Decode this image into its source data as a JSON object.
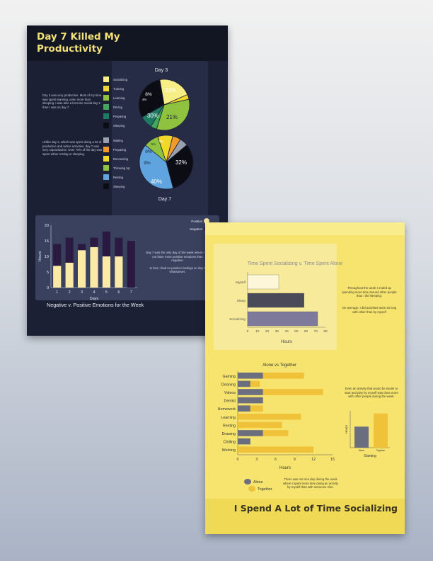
{
  "productivity_poster": {
    "title": "Day 7 Killed My Productivity",
    "day3_text": "Day 3 was very productive. Most of my time was spent learning, even more than sleeping. I was also a lot more social day 3 than I was on day 7.",
    "day7_text": "Unlike day 3, which was spent doing a lot of productive and active activities, day 7 was very unproductive. Over 70% of the day was spent either resting or sleeping.",
    "emotions_note_1": "Day 7 was the only day of the week where I did not have more positive emotions than negative.",
    "emotions_note_2": "In fact, I had no positive feelings on day 7 whatsoever.",
    "legend_positive": "Positive",
    "legend_negative": "Negative"
  },
  "socializing_poster": {
    "title": "I Spend A Lot of Time Socializing",
    "note_1": "Throughout the week I ended up spending more time around other people than I did sleeping.",
    "note_2": "On average, I did activities twice as long with other than by myself",
    "note_3": "Even an activity that would be easier to start and play by myself was done more with other people during the week.",
    "note_4": "There was not one day during the week where I spent more time doing an activity by myself than with someone else."
  },
  "chart_data": [
    {
      "type": "pie",
      "title": "Day 3",
      "legend": [
        "Socializing",
        "Tutoring",
        "Learning",
        "Driving",
        "Preparing",
        "Sleeping"
      ],
      "slices": [
        {
          "label": "Socializing",
          "value": 21,
          "color": "#f7ee85"
        },
        {
          "label": "Tutoring",
          "value": 3,
          "color": "#f2d82a"
        },
        {
          "label": "Learning",
          "value": 33,
          "color": "#8fc23f"
        },
        {
          "label": "Driving",
          "value": 4,
          "color": "#3fa85a"
        },
        {
          "label": "Preparing",
          "value": 8,
          "color": "#1f7a63"
        },
        {
          "label": "Sleeping",
          "value": 30,
          "color": "#0c0d14"
        }
      ],
      "data_labels": [
        "33%",
        "21%",
        "30%",
        "8%",
        "4%"
      ]
    },
    {
      "type": "pie",
      "title": "Day 7",
      "legend": [
        "Waiting",
        "Preparing",
        "Recovering",
        "Throwing Up",
        "Resting",
        "Sleeping"
      ],
      "slices": [
        {
          "label": "Sleeping",
          "value": 32,
          "color": "#0c0d14"
        },
        {
          "label": "Resting",
          "value": 40,
          "color": "#5fa3df"
        },
        {
          "label": "Throwing Up",
          "value": 9,
          "color": "#8fc23f"
        },
        {
          "label": "Recovering",
          "value": 9,
          "color": "#f2d82a"
        },
        {
          "label": "Preparing",
          "value": 5,
          "color": "#f09a2a"
        },
        {
          "label": "Waiting",
          "value": 5,
          "color": "#9aa0ad"
        }
      ],
      "data_labels": [
        "32%",
        "40%",
        "9%",
        "9%",
        "5%",
        "5%"
      ]
    },
    {
      "type": "bar",
      "stacked": true,
      "title": "Negative v. Positive Emotions for the Week",
      "xlabel": "Days",
      "ylabel": "Hours",
      "ylim": [
        0,
        20
      ],
      "yticks": [
        0,
        5,
        10,
        15,
        20
      ],
      "categories": [
        "1",
        "2",
        "3",
        "4",
        "5",
        "6",
        "7"
      ],
      "series": [
        {
          "name": "Positive",
          "values": [
            7,
            8,
            12,
            13,
            10,
            10,
            0
          ],
          "color": "#fbe9a6"
        },
        {
          "name": "Negative",
          "values": [
            7,
            8,
            2,
            3,
            8,
            6,
            15
          ],
          "color": "#2a1a42"
        }
      ]
    },
    {
      "type": "bar",
      "orientation": "horizontal",
      "title": "Time Spent Socializing v. Time Spent Alone",
      "xlabel": "Hours",
      "xlim": [
        0,
        80
      ],
      "xticks": [
        0,
        10,
        20,
        30,
        40,
        50,
        60,
        70,
        80
      ],
      "categories": [
        "Myself",
        "Sleep",
        "Socializing"
      ],
      "values": [
        32,
        58,
        72
      ],
      "colors": [
        "#fdf6d8",
        "#4a4a58",
        "#7d7a9c"
      ]
    },
    {
      "type": "bar",
      "orientation": "horizontal",
      "stacked": true,
      "title": "Alone vs Together",
      "xlabel": "Hours",
      "xlim": [
        0,
        15
      ],
      "xticks": [
        0,
        3,
        6,
        9,
        12,
        15
      ],
      "categories": [
        "Gaming",
        "Cleaning",
        "Videos",
        "Dentist",
        "Homework",
        "Learning",
        "Resting",
        "Drawing",
        "Chilling",
        "Working"
      ],
      "series": [
        {
          "name": "Alone",
          "values": [
            4,
            2,
            4,
            4,
            2,
            0,
            0,
            4,
            2,
            0
          ],
          "color": "#6b6e7e"
        },
        {
          "name": "Together",
          "values": [
            6.5,
            1.5,
            9.5,
            0,
            2,
            10,
            7,
            4,
            0,
            12
          ],
          "color": "#f0c23a"
        }
      ]
    },
    {
      "type": "bar",
      "title": "",
      "xlabel": "Gaming",
      "ylabel": "Hours",
      "categories": [
        "Alone",
        "Together"
      ],
      "values": [
        4,
        6.5
      ],
      "colors": [
        "#6b6e7e",
        "#f0c23a"
      ]
    }
  ]
}
